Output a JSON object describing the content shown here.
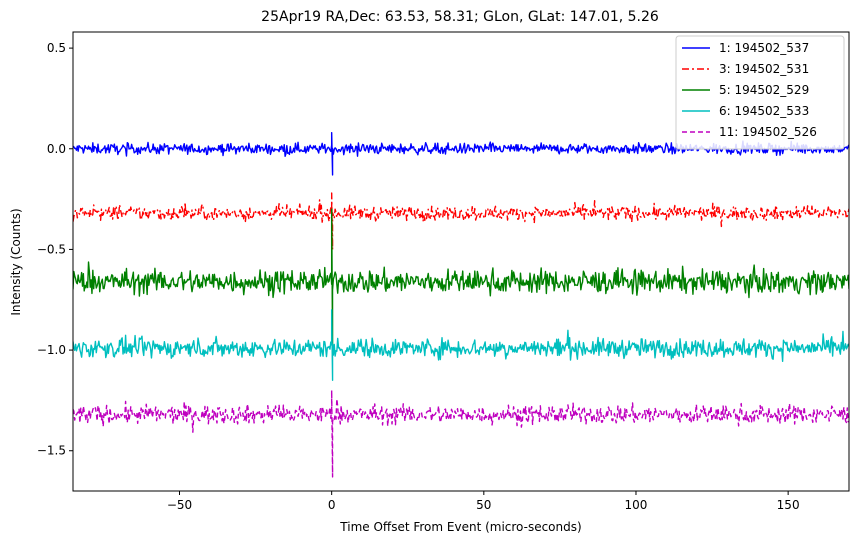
{
  "chart_data": {
    "type": "line",
    "title": "25Apr19 RA,Dec:   63.53,  58.31; GLon, GLat:  147.01,   5.26",
    "xlabel": "Time Offset From Event (micro-seconds)",
    "ylabel": "Intensity (Counts)",
    "xlim": [
      -85,
      170
    ],
    "ylim": [
      -1.7,
      0.58
    ],
    "xticks": [
      -50,
      0,
      50,
      100,
      150
    ],
    "xtick_labels": [
      "−50",
      "0",
      "50",
      "100",
      "150"
    ],
    "yticks": [
      0.5,
      0.0,
      -0.5,
      -1.0,
      -1.5
    ],
    "ytick_labels": [
      "0.5",
      "0.0",
      "−0.5",
      "−1.0",
      "−1.5"
    ],
    "grid": false,
    "legend_position": "top-right",
    "series": [
      {
        "name": "1: 194502_537",
        "color": "#0000ff",
        "style": "solid",
        "baseline": 0.0,
        "noise": 0.045,
        "spike": [
          0.08,
          -0.13
        ]
      },
      {
        "name": "3: 194502_531",
        "color": "#ff0000",
        "style": "dashdot",
        "baseline": -0.32,
        "noise": 0.06,
        "spike": [
          -0.22,
          -0.5
        ]
      },
      {
        "name": "5: 194502_529",
        "color": "#008000",
        "style": "solid",
        "baseline": -0.66,
        "noise": 0.1,
        "spike": [
          -0.3,
          -1.0
        ]
      },
      {
        "name": "6: 194502_533",
        "color": "#00bfbf",
        "style": "solid",
        "baseline": -0.99,
        "noise": 0.08,
        "spike": [
          -0.8,
          -1.15
        ]
      },
      {
        "name": "11: 194502_526",
        "color": "#bf00bf",
        "style": "dashed",
        "baseline": -1.32,
        "noise": 0.08,
        "spike": [
          -1.2,
          -1.63
        ]
      }
    ]
  }
}
